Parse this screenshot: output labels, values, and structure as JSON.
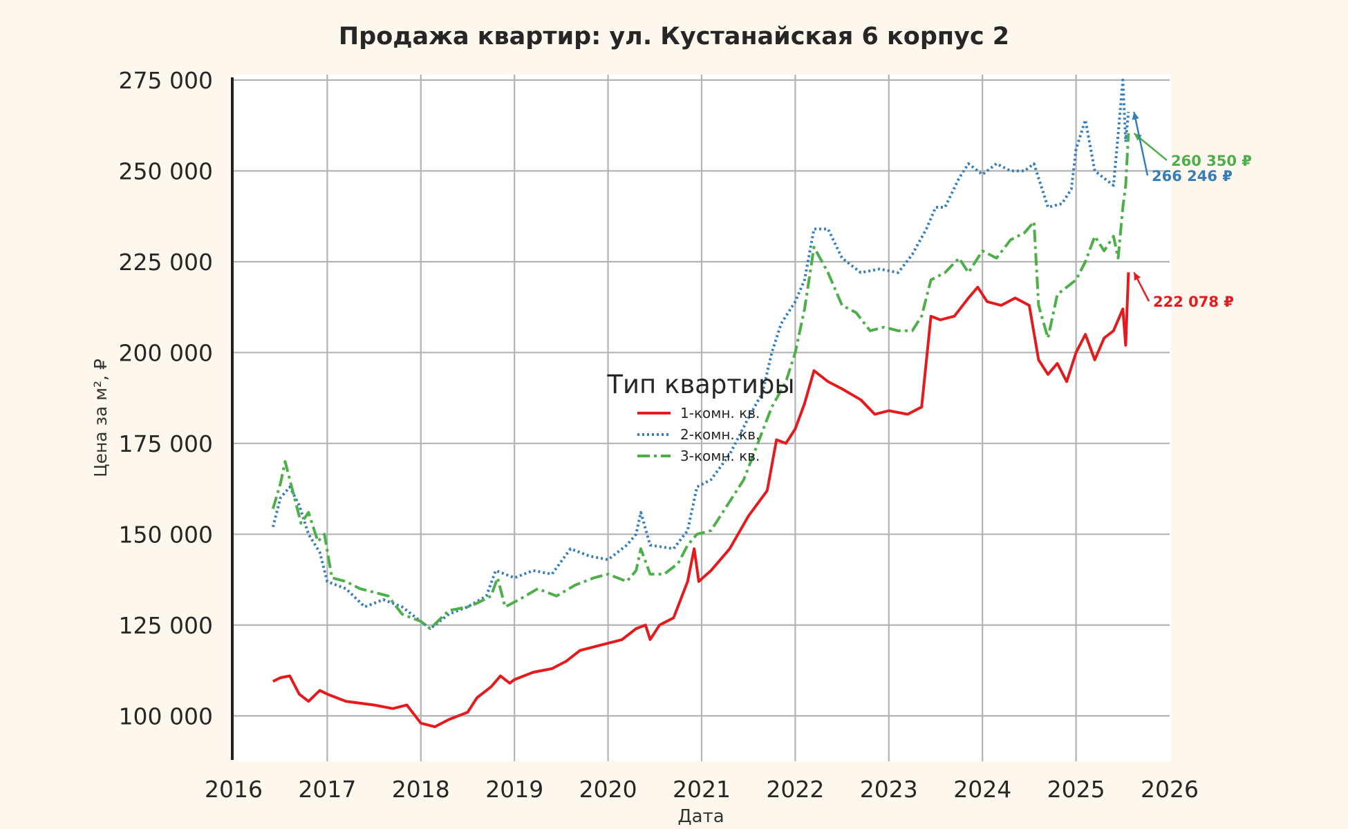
{
  "chart_data": {
    "type": "line",
    "title": "Продажа квартир: ул. Кустанайская 6 корпус 2",
    "xlabel": "Дата",
    "ylabel": "Цена за м², ₽",
    "xlim": [
      2016,
      2026
    ],
    "ylim": [
      87500,
      276500
    ],
    "x_ticks": [
      "2016",
      "2017",
      "2018",
      "2019",
      "2020",
      "2021",
      "2022",
      "2023",
      "2024",
      "2025",
      "2026"
    ],
    "y_ticks": [
      100000,
      125000,
      150000,
      175000,
      200000,
      225000,
      250000,
      275000
    ],
    "y_tick_labels": [
      "100 000",
      "125 000",
      "150 000",
      "175 000",
      "200 000",
      "225 000",
      "250 000",
      "275 000"
    ],
    "grid": true,
    "legend": {
      "title": "Тип квартиры",
      "placement": "center"
    },
    "series": [
      {
        "name": "1-комн. кв.",
        "color": "#e41a1c",
        "dash": "solid",
        "points": [
          [
            2016.42,
            109500
          ],
          [
            2016.5,
            110500
          ],
          [
            2016.6,
            111000
          ],
          [
            2016.7,
            106000
          ],
          [
            2016.8,
            104000
          ],
          [
            2016.92,
            107000
          ],
          [
            2017.0,
            106000
          ],
          [
            2017.2,
            104000
          ],
          [
            2017.5,
            103000
          ],
          [
            2017.7,
            102000
          ],
          [
            2017.85,
            103000
          ],
          [
            2018.0,
            98000
          ],
          [
            2018.15,
            97000
          ],
          [
            2018.3,
            99000
          ],
          [
            2018.5,
            101000
          ],
          [
            2018.6,
            105000
          ],
          [
            2018.75,
            108000
          ],
          [
            2018.85,
            111000
          ],
          [
            2018.95,
            109000
          ],
          [
            2019.0,
            110000
          ],
          [
            2019.2,
            112000
          ],
          [
            2019.4,
            113000
          ],
          [
            2019.55,
            115000
          ],
          [
            2019.7,
            118000
          ],
          [
            2019.85,
            119000
          ],
          [
            2020.0,
            120000
          ],
          [
            2020.15,
            121000
          ],
          [
            2020.3,
            124000
          ],
          [
            2020.4,
            125000
          ],
          [
            2020.45,
            121000
          ],
          [
            2020.55,
            125000
          ],
          [
            2020.7,
            127000
          ],
          [
            2020.85,
            137000
          ],
          [
            2020.92,
            146000
          ],
          [
            2020.97,
            137000
          ],
          [
            2021.1,
            140000
          ],
          [
            2021.3,
            146000
          ],
          [
            2021.5,
            155000
          ],
          [
            2021.7,
            162000
          ],
          [
            2021.8,
            176000
          ],
          [
            2021.9,
            175000
          ],
          [
            2022.0,
            179000
          ],
          [
            2022.1,
            186000
          ],
          [
            2022.2,
            195000
          ],
          [
            2022.35,
            192000
          ],
          [
            2022.5,
            190000
          ],
          [
            2022.7,
            187000
          ],
          [
            2022.85,
            183000
          ],
          [
            2023.0,
            184000
          ],
          [
            2023.2,
            183000
          ],
          [
            2023.35,
            185000
          ],
          [
            2023.45,
            210000
          ],
          [
            2023.55,
            209000
          ],
          [
            2023.7,
            210000
          ],
          [
            2023.85,
            215000
          ],
          [
            2023.95,
            218000
          ],
          [
            2024.05,
            214000
          ],
          [
            2024.2,
            213000
          ],
          [
            2024.35,
            215000
          ],
          [
            2024.5,
            213000
          ],
          [
            2024.6,
            198000
          ],
          [
            2024.7,
            194000
          ],
          [
            2024.8,
            197000
          ],
          [
            2024.9,
            192000
          ],
          [
            2025.0,
            200000
          ],
          [
            2025.1,
            205000
          ],
          [
            2025.2,
            198000
          ],
          [
            2025.3,
            204000
          ],
          [
            2025.4,
            206000
          ],
          [
            2025.5,
            212000
          ],
          [
            2025.53,
            202000
          ],
          [
            2025.56,
            222078
          ]
        ]
      },
      {
        "name": "2-комн. кв.",
        "color": "#377eb8",
        "dash": "dotted",
        "points": [
          [
            2016.42,
            152000
          ],
          [
            2016.5,
            160000
          ],
          [
            2016.6,
            163000
          ],
          [
            2016.7,
            158000
          ],
          [
            2016.8,
            150000
          ],
          [
            2016.92,
            145000
          ],
          [
            2017.0,
            137000
          ],
          [
            2017.2,
            135000
          ],
          [
            2017.4,
            130000
          ],
          [
            2017.6,
            132000
          ],
          [
            2017.8,
            130000
          ],
          [
            2018.0,
            126000
          ],
          [
            2018.1,
            124000
          ],
          [
            2018.3,
            128000
          ],
          [
            2018.5,
            130000
          ],
          [
            2018.7,
            133000
          ],
          [
            2018.8,
            140000
          ],
          [
            2019.0,
            138000
          ],
          [
            2019.2,
            140000
          ],
          [
            2019.4,
            139000
          ],
          [
            2019.6,
            146000
          ],
          [
            2019.8,
            144000
          ],
          [
            2020.0,
            143000
          ],
          [
            2020.2,
            147000
          ],
          [
            2020.3,
            150000
          ],
          [
            2020.35,
            156000
          ],
          [
            2020.45,
            147000
          ],
          [
            2020.7,
            146000
          ],
          [
            2020.85,
            151000
          ],
          [
            2020.95,
            163000
          ],
          [
            2021.1,
            165000
          ],
          [
            2021.3,
            172000
          ],
          [
            2021.5,
            182000
          ],
          [
            2021.65,
            189000
          ],
          [
            2021.75,
            200000
          ],
          [
            2021.85,
            208000
          ],
          [
            2022.0,
            214000
          ],
          [
            2022.1,
            220000
          ],
          [
            2022.2,
            234000
          ],
          [
            2022.35,
            234000
          ],
          [
            2022.5,
            226000
          ],
          [
            2022.7,
            222000
          ],
          [
            2022.9,
            223000
          ],
          [
            2023.1,
            222000
          ],
          [
            2023.25,
            227000
          ],
          [
            2023.4,
            234000
          ],
          [
            2023.5,
            240000
          ],
          [
            2023.6,
            240000
          ],
          [
            2023.75,
            248000
          ],
          [
            2023.85,
            252000
          ],
          [
            2024.0,
            249000
          ],
          [
            2024.15,
            252000
          ],
          [
            2024.3,
            250000
          ],
          [
            2024.45,
            250000
          ],
          [
            2024.55,
            252000
          ],
          [
            2024.7,
            240000
          ],
          [
            2024.85,
            241000
          ],
          [
            2024.95,
            245000
          ],
          [
            2025.0,
            256000
          ],
          [
            2025.1,
            264000
          ],
          [
            2025.2,
            250000
          ],
          [
            2025.3,
            248000
          ],
          [
            2025.4,
            246000
          ],
          [
            2025.45,
            260000
          ],
          [
            2025.5,
            275000
          ],
          [
            2025.53,
            258000
          ],
          [
            2025.56,
            266246
          ]
        ]
      },
      {
        "name": "3-комн. кв.",
        "color": "#4daf4a",
        "dash": "dashdot",
        "points": [
          [
            2016.42,
            157000
          ],
          [
            2016.5,
            164000
          ],
          [
            2016.55,
            170000
          ],
          [
            2016.65,
            160000
          ],
          [
            2016.72,
            153000
          ],
          [
            2016.8,
            156000
          ],
          [
            2016.9,
            148000
          ],
          [
            2016.97,
            150000
          ],
          [
            2017.05,
            138000
          ],
          [
            2017.2,
            137000
          ],
          [
            2017.35,
            135000
          ],
          [
            2017.5,
            134000
          ],
          [
            2017.65,
            133000
          ],
          [
            2017.8,
            128000
          ],
          [
            2018.0,
            126000
          ],
          [
            2018.1,
            124000
          ],
          [
            2018.3,
            129000
          ],
          [
            2018.5,
            130000
          ],
          [
            2018.6,
            131000
          ],
          [
            2018.75,
            133000
          ],
          [
            2018.82,
            138000
          ],
          [
            2018.9,
            130000
          ],
          [
            2019.05,
            132000
          ],
          [
            2019.25,
            135000
          ],
          [
            2019.45,
            133000
          ],
          [
            2019.65,
            136000
          ],
          [
            2019.85,
            138000
          ],
          [
            2020.0,
            139000
          ],
          [
            2020.2,
            137000
          ],
          [
            2020.3,
            140000
          ],
          [
            2020.35,
            146000
          ],
          [
            2020.45,
            139000
          ],
          [
            2020.6,
            139000
          ],
          [
            2020.75,
            142000
          ],
          [
            2020.85,
            147000
          ],
          [
            2020.95,
            150000
          ],
          [
            2021.1,
            151000
          ],
          [
            2021.25,
            157000
          ],
          [
            2021.45,
            165000
          ],
          [
            2021.6,
            175000
          ],
          [
            2021.75,
            185000
          ],
          [
            2021.9,
            192000
          ],
          [
            2022.0,
            200000
          ],
          [
            2022.1,
            212000
          ],
          [
            2022.2,
            229000
          ],
          [
            2022.35,
            222000
          ],
          [
            2022.5,
            213000
          ],
          [
            2022.65,
            211000
          ],
          [
            2022.8,
            206000
          ],
          [
            2022.95,
            207000
          ],
          [
            2023.1,
            206000
          ],
          [
            2023.25,
            206000
          ],
          [
            2023.35,
            210000
          ],
          [
            2023.45,
            220000
          ],
          [
            2023.6,
            222000
          ],
          [
            2023.75,
            226000
          ],
          [
            2023.85,
            222000
          ],
          [
            2024.0,
            228000
          ],
          [
            2024.15,
            226000
          ],
          [
            2024.3,
            231000
          ],
          [
            2024.45,
            233000
          ],
          [
            2024.55,
            236000
          ],
          [
            2024.6,
            213000
          ],
          [
            2024.7,
            204000
          ],
          [
            2024.8,
            216000
          ],
          [
            2024.9,
            218000
          ],
          [
            2025.0,
            220000
          ],
          [
            2025.1,
            225000
          ],
          [
            2025.2,
            232000
          ],
          [
            2025.3,
            228000
          ],
          [
            2025.4,
            232000
          ],
          [
            2025.45,
            226000
          ],
          [
            2025.5,
            240000
          ],
          [
            2025.53,
            246000
          ],
          [
            2025.56,
            260350
          ]
        ]
      }
    ],
    "annotations": [
      {
        "text": "260 350 ₽",
        "color": "#4daf4a",
        "series": "3-комн. кв."
      },
      {
        "text": "266 246 ₽",
        "color": "#377eb8",
        "series": "2-комн. кв."
      },
      {
        "text": "222 078 ₽",
        "color": "#e41a1c",
        "series": "1-комн. кв."
      }
    ]
  }
}
